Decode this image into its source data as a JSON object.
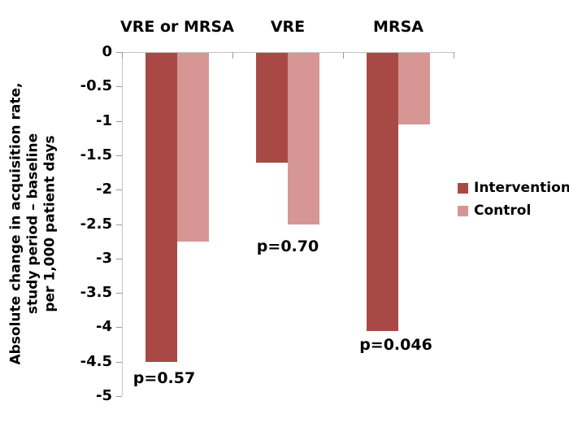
{
  "chart_data": {
    "type": "bar",
    "title": "",
    "categories": [
      "VRE or MRSA",
      "VRE",
      "MRSA"
    ],
    "series": [
      {
        "name": "Intervention",
        "color": "#a94946",
        "values": [
          -4.49,
          -1.6,
          -4.04
        ]
      },
      {
        "name": "Control",
        "color": "#d59694",
        "values": [
          -2.74,
          -2.49,
          -1.04
        ]
      }
    ],
    "p_value_labels": [
      "p=0.57",
      "p=0.70",
      "p=0.046"
    ],
    "ylabel": "Absolute change in acquisition rate,\nstudy period – baseline\nper 1,000 patient days",
    "xlabel": "",
    "ytick_labels": [
      "0",
      "-0.5",
      "-1",
      "-1.5",
      "-2",
      "-2.5",
      "-3",
      "-3.5",
      "-4",
      "-4.5",
      "-5"
    ],
    "ytick_values": [
      0,
      -0.5,
      -1,
      -1.5,
      -2,
      -2.5,
      -3,
      -3.5,
      -4,
      -4.5,
      -5
    ],
    "ylim": [
      -5,
      0
    ],
    "grid": false,
    "legend_position": "right-middle",
    "axis_color": "#c3c3c3",
    "tick_color": "#9b9b9b",
    "text_color": "#000000",
    "background": "#ffffff"
  }
}
